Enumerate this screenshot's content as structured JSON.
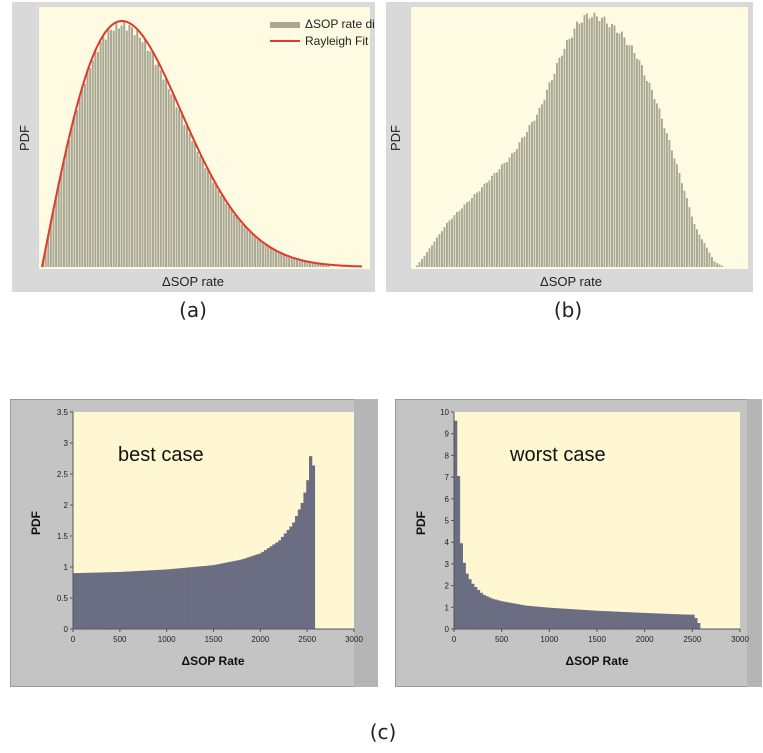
{
  "captions": {
    "a": "(a)",
    "b": "(b)",
    "c": "(c)"
  },
  "chart_data": [
    {
      "panel": "a",
      "type": "bar",
      "xlabel": "ΔSOP rate",
      "ylabel": "PDF",
      "legend": {
        "placement": "top-right",
        "entries": [
          "ΔSOP rate distribution",
          "Rayleigh Fit"
        ]
      },
      "series": [
        {
          "name": "ΔSOP rate distribution",
          "kind": "histogram",
          "shape": "rayleigh",
          "mode": 0.25,
          "tail_end": 1.0
        },
        {
          "name": "Rayleigh Fit",
          "kind": "line",
          "color": "#e03a2a",
          "shape": "rayleigh",
          "mode": 0.25
        }
      ],
      "colors": {
        "bar": "#a9a895",
        "bar_edge": "#8f8e7c",
        "plot_bg": "#fefbe2",
        "frame": "#d9d9d9"
      }
    },
    {
      "panel": "b",
      "type": "bar",
      "xlabel": "ΔSOP rate",
      "ylabel": "PDF",
      "series": [
        {
          "name": "",
          "kind": "histogram",
          "profile": [
            [
              0,
              0.0
            ],
            [
              0.03,
              0.05
            ],
            [
              0.1,
              0.18
            ],
            [
              0.2,
              0.31
            ],
            [
              0.3,
              0.45
            ],
            [
              0.38,
              0.62
            ],
            [
              0.45,
              0.85
            ],
            [
              0.5,
              0.97
            ],
            [
              0.53,
              1.0
            ],
            [
              0.57,
              0.99
            ],
            [
              0.63,
              0.93
            ],
            [
              0.68,
              0.84
            ],
            [
              0.74,
              0.66
            ],
            [
              0.8,
              0.42
            ],
            [
              0.86,
              0.16
            ],
            [
              0.92,
              0.02
            ],
            [
              0.95,
              0.0
            ]
          ]
        }
      ],
      "colors": {
        "bar": "#a9a895",
        "plot_bg": "#fefbe2",
        "frame": "#d9d9d9"
      }
    },
    {
      "panel": "c-left",
      "type": "bar",
      "title": "best case",
      "xlabel": "ΔSOP Rate",
      "ylabel": "PDF",
      "xlim": [
        0,
        3000
      ],
      "ylim": [
        0,
        3.5
      ],
      "xticks": [
        "0",
        "500",
        "1000",
        "1500",
        "2000",
        "2500",
        "3000"
      ],
      "yticks": [
        "0",
        "0.5",
        "1",
        "1.5",
        "2",
        "2.5",
        "3",
        "3.5"
      ],
      "series": [
        {
          "name": "",
          "kind": "histogram",
          "bin_width": 30,
          "profile": [
            [
              0,
              0.9
            ],
            [
              500,
              0.92
            ],
            [
              1000,
              0.96
            ],
            [
              1500,
              1.03
            ],
            [
              1800,
              1.12
            ],
            [
              2000,
              1.22
            ],
            [
              2200,
              1.42
            ],
            [
              2350,
              1.7
            ],
            [
              2450,
              2.05
            ],
            [
              2500,
              2.35
            ],
            [
              2530,
              2.65
            ],
            [
              2550,
              3.2
            ],
            [
              2570,
              2.45
            ],
            [
              2590,
              2.45
            ]
          ]
        }
      ],
      "colors": {
        "bar": "#6b6d82",
        "plot_bg": "#fff6d2",
        "frame": "#c4c4c4"
      }
    },
    {
      "panel": "c-right",
      "type": "bar",
      "title": "worst case",
      "xlabel": "ΔSOP Rate",
      "ylabel": "PDF",
      "xlim": [
        0,
        3000
      ],
      "ylim": [
        0,
        10
      ],
      "xticks": [
        "0",
        "500",
        "1000",
        "1500",
        "2000",
        "2500",
        "3000"
      ],
      "yticks": [
        "0",
        "1",
        "2",
        "3",
        "4",
        "5",
        "6",
        "7",
        "8",
        "9",
        "10"
      ],
      "series": [
        {
          "name": "",
          "kind": "histogram",
          "bin_width": 30,
          "profile": [
            [
              30,
              9.6
            ],
            [
              60,
              4.5
            ],
            [
              90,
              3.4
            ],
            [
              120,
              2.7
            ],
            [
              150,
              2.4
            ],
            [
              200,
              2.05
            ],
            [
              300,
              1.6
            ],
            [
              400,
              1.4
            ],
            [
              500,
              1.28
            ],
            [
              750,
              1.08
            ],
            [
              1000,
              0.98
            ],
            [
              1500,
              0.84
            ],
            [
              2000,
              0.74
            ],
            [
              2400,
              0.67
            ],
            [
              2520,
              0.66
            ],
            [
              2550,
              0.35
            ],
            [
              2580,
              0.2
            ]
          ]
        }
      ],
      "colors": {
        "bar": "#6b6d82",
        "plot_bg": "#fff6d2",
        "frame": "#c4c4c4"
      }
    }
  ]
}
